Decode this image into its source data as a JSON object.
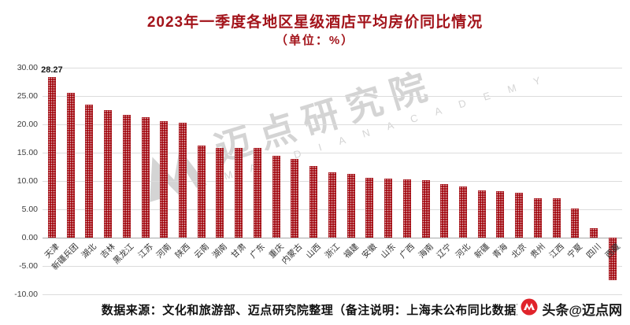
{
  "title": "2023年一季度各地区星级酒店平均房价同比情况",
  "subtitle": "（单位：%）",
  "source_note": "数据来源：文化和旅游部、迈点研究院整理（备注说明：上海未公布同比数据）",
  "watermark": {
    "text": "迈点研究院",
    "subtext": "M A I D I A N  A C A D E M Y"
  },
  "badge": {
    "text": "头条@迈点网"
  },
  "colors": {
    "title": "#A3141B",
    "bar": "#A50F16",
    "grid": "#DCDCDC",
    "badge_logo": "#E0242B"
  },
  "chart_data": {
    "type": "bar",
    "title": "2023年一季度各地区星级酒店平均房价同比情况",
    "subtitle": "（单位：%）",
    "xlabel": "",
    "ylabel": "",
    "ylim": [
      -10,
      30
    ],
    "yticks": [
      "30.00",
      "25.00",
      "20.00",
      "15.00",
      "10.00",
      "5.00",
      "0.00",
      "-5.00",
      "-10.00"
    ],
    "grid": true,
    "legend": false,
    "categories": [
      "天津",
      "新疆兵团",
      "湖北",
      "吉林",
      "黑龙江",
      "江苏",
      "河南",
      "陕西",
      "云南",
      "湖南",
      "甘肃",
      "广东",
      "重庆",
      "内蒙古",
      "山西",
      "浙江",
      "福建",
      "安徽",
      "山东",
      "广西",
      "海南",
      "辽宁",
      "河北",
      "新疆",
      "青海",
      "北京",
      "贵州",
      "江西",
      "宁夏",
      "四川",
      "西藏"
    ],
    "values": [
      28.27,
      25.6,
      23.5,
      22.5,
      21.6,
      21.3,
      20.6,
      20.3,
      16.2,
      15.9,
      15.8,
      15.8,
      14.5,
      13.9,
      12.6,
      11.5,
      11.3,
      10.6,
      10.4,
      10.3,
      10.2,
      9.4,
      9.0,
      8.4,
      8.2,
      7.9,
      7.0,
      6.9,
      5.1,
      1.6,
      -7.5
    ],
    "data_label": {
      "category": "天津",
      "value": "28.27"
    }
  }
}
